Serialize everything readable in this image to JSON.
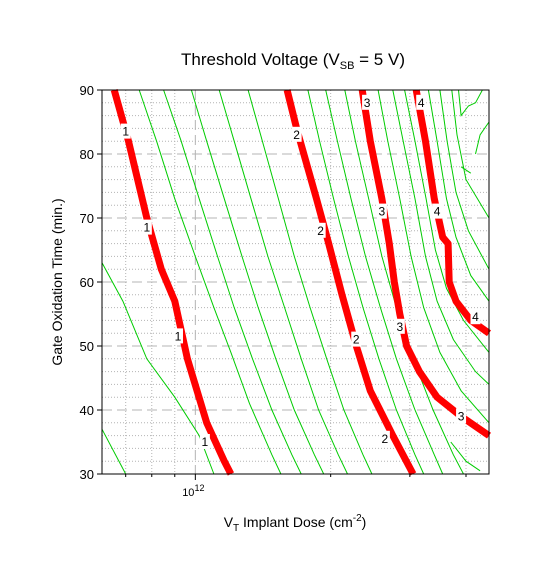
{
  "chart_data": {
    "type": "contour",
    "title": {
      "main": "Threshold Voltage (V",
      "sub": "SB",
      "rest": " = 5 V)"
    },
    "xlabel": {
      "main": "V",
      "sub": "T",
      "rest": " Implant Dose (cm",
      "sup": "-2",
      "end": ")"
    },
    "ylabel": "Gate Oxidation Time (min.)",
    "x_scale": "log",
    "xlim": [
      620000000000.0,
      4500000000000.0
    ],
    "ylim": [
      30,
      90
    ],
    "x_tick_labels": [
      {
        "value": 1000000000000.0,
        "base": "10",
        "exp": "12"
      }
    ],
    "x_minor_ticks": [
      700000000000.0,
      800000000000.0,
      900000000000.0,
      2000000000000.0,
      3000000000000.0,
      4000000000000.0
    ],
    "y_ticks": [
      30,
      40,
      50,
      60,
      70,
      80,
      90
    ],
    "y_tick_labels": [
      "30",
      "40",
      "50",
      "60",
      "70",
      "80",
      "90"
    ],
    "grid": true,
    "colors": {
      "labeled_contour": "#ff0000",
      "minor_contour": "#00cc00",
      "grid": "#b4b4b4",
      "frame": "#000000"
    },
    "labeled_contours": [
      {
        "level": "1",
        "points": [
          [
            660000000000.0,
            90
          ],
          [
            710000000000.0,
            82
          ],
          [
            780000000000.0,
            70
          ],
          [
            840000000000.0,
            62
          ],
          [
            900000000000.0,
            57
          ],
          [
            960000000000.0,
            48
          ],
          [
            1060000000000.0,
            38
          ],
          [
            1160000000000.0,
            32
          ],
          [
            1200000000000.0,
            30
          ]
        ],
        "label_positions": [
          [
            700000000000.0,
            83.5
          ],
          [
            780000000000.0,
            68.5
          ],
          [
            915000000000.0,
            51.5
          ],
          [
            1050000000000.0,
            35
          ]
        ]
      },
      {
        "level": "2",
        "points": [
          [
            1600000000000.0,
            90
          ],
          [
            1680000000000.0,
            84
          ],
          [
            1860000000000.0,
            73
          ],
          [
            1980000000000.0,
            66
          ],
          [
            2120000000000.0,
            58
          ],
          [
            2280000000000.0,
            50
          ],
          [
            2450000000000.0,
            43
          ],
          [
            2750000000000.0,
            36
          ],
          [
            3050000000000.0,
            30
          ]
        ],
        "label_positions": [
          [
            1680000000000.0,
            83
          ],
          [
            1900000000000.0,
            68
          ],
          [
            2280000000000.0,
            51
          ],
          [
            2640000000000.0,
            35.5
          ]
        ]
      },
      {
        "level": "3",
        "points": [
          [
            2350000000000.0,
            90
          ],
          [
            2450000000000.0,
            82
          ],
          [
            2600000000000.0,
            73
          ],
          [
            2700000000000.0,
            66
          ],
          [
            2770000000000.0,
            60
          ],
          [
            2850000000000.0,
            55
          ],
          [
            2950000000000.0,
            50
          ],
          [
            3150000000000.0,
            46
          ],
          [
            3450000000000.0,
            42
          ],
          [
            3900000000000.0,
            39
          ],
          [
            4500000000000.0,
            36
          ]
        ],
        "label_positions": [
          [
            2410000000000.0,
            88
          ],
          [
            2600000000000.0,
            71
          ],
          [
            2850000000000.0,
            53
          ],
          [
            3900000000000.0,
            39
          ]
        ]
      },
      {
        "level": "4",
        "points": [
          [
            3100000000000.0,
            90
          ],
          [
            3250000000000.0,
            82
          ],
          [
            3400000000000.0,
            73
          ],
          [
            3550000000000.0,
            67
          ],
          [
            3650000000000.0,
            66
          ],
          [
            3670000000000.0,
            60
          ],
          [
            3800000000000.0,
            57
          ],
          [
            4100000000000.0,
            54
          ],
          [
            4500000000000.0,
            52
          ]
        ],
        "label_positions": [
          [
            3180000000000.0,
            88
          ],
          [
            3450000000000.0,
            71
          ],
          [
            4200000000000.0,
            54.5
          ]
        ]
      }
    ],
    "minor_contours": [
      [
        [
          620000000000.0,
          63
        ],
        [
          690000000000.0,
          57
        ],
        [
          780000000000.0,
          48
        ],
        [
          900000000000.0,
          42
        ],
        [
          1020000000000.0,
          36
        ],
        [
          1100000000000.0,
          30
        ]
      ],
      [
        [
          620000000000.0,
          37
        ],
        [
          700000000000.0,
          30
        ]
      ],
      [
        [
          750000000000.0,
          90
        ],
        [
          820000000000.0,
          82
        ],
        [
          900000000000.0,
          73
        ],
        [
          1000000000000.0,
          64
        ],
        [
          1100000000000.0,
          56
        ],
        [
          1200000000000.0,
          49
        ],
        [
          1320000000000.0,
          41
        ],
        [
          1480000000000.0,
          33
        ],
        [
          1550000000000.0,
          30
        ]
      ],
      [
        [
          850000000000.0,
          90
        ],
        [
          930000000000.0,
          82
        ],
        [
          1020000000000.0,
          73
        ],
        [
          1120000000000.0,
          64
        ],
        [
          1220000000000.0,
          56
        ],
        [
          1340000000000.0,
          48
        ],
        [
          1480000000000.0,
          40
        ],
        [
          1640000000000.0,
          33
        ],
        [
          1720000000000.0,
          30
        ]
      ],
      [
        [
          980000000000.0,
          90
        ],
        [
          1060000000000.0,
          82
        ],
        [
          1160000000000.0,
          73
        ],
        [
          1270000000000.0,
          64
        ],
        [
          1380000000000.0,
          56
        ],
        [
          1510000000000.0,
          48
        ],
        [
          1660000000000.0,
          40
        ],
        [
          1840000000000.0,
          33
        ],
        [
          1930000000000.0,
          30
        ]
      ],
      [
        [
          1130000000000.0,
          90
        ],
        [
          1220000000000.0,
          82
        ],
        [
          1330000000000.0,
          73
        ],
        [
          1450000000000.0,
          64
        ],
        [
          1580000000000.0,
          56
        ],
        [
          1720000000000.0,
          48
        ],
        [
          1880000000000.0,
          40
        ],
        [
          2080000000000.0,
          33
        ],
        [
          2180000000000.0,
          30
        ]
      ],
      [
        [
          1310000000000.0,
          90
        ],
        [
          1410000000000.0,
          82
        ],
        [
          1530000000000.0,
          73
        ],
        [
          1660000000000.0,
          64
        ],
        [
          1800000000000.0,
          56
        ],
        [
          1960000000000.0,
          48
        ],
        [
          2140000000000.0,
          40
        ],
        [
          2360000000000.0,
          33
        ],
        [
          2470000000000.0,
          30
        ]
      ],
      [
        [
          1780000000000.0,
          90
        ],
        [
          1890000000000.0,
          82
        ],
        [
          2030000000000.0,
          73
        ],
        [
          2190000000000.0,
          64
        ],
        [
          2360000000000.0,
          56
        ],
        [
          2560000000000.0,
          48
        ],
        [
          2800000000000.0,
          40
        ],
        [
          3080000000000.0,
          33
        ],
        [
          3220000000000.0,
          30
        ]
      ],
      [
        [
          1950000000000.0,
          90
        ],
        [
          2070000000000.0,
          82
        ],
        [
          2220000000000.0,
          73
        ],
        [
          2390000000000.0,
          64
        ],
        [
          2580000000000.0,
          56
        ],
        [
          2800000000000.0,
          48
        ],
        [
          3080000000000.0,
          40
        ],
        [
          3400000000000.0,
          33
        ],
        [
          3550000000000.0,
          30
        ]
      ],
      [
        [
          2150000000000.0,
          90
        ],
        [
          2270000000000.0,
          82
        ],
        [
          2430000000000.0,
          73
        ],
        [
          2600000000000.0,
          64
        ],
        [
          2800000000000.0,
          56
        ],
        [
          3050000000000.0,
          48
        ],
        [
          3380000000000.0,
          40
        ],
        [
          3750000000000.0,
          33
        ],
        [
          3950000000000.0,
          30
        ]
      ],
      [
        [
          2550000000000.0,
          90
        ],
        [
          2680000000000.0,
          82
        ],
        [
          2850000000000.0,
          73
        ],
        [
          3020000000000.0,
          64
        ],
        [
          3220000000000.0,
          56
        ],
        [
          3500000000000.0,
          49
        ],
        [
          3900000000000.0,
          43
        ],
        [
          4500000000000.0,
          38
        ]
      ],
      [
        [
          2750000000000.0,
          90
        ],
        [
          2900000000000.0,
          82
        ],
        [
          3080000000000.0,
          73
        ],
        [
          3250000000000.0,
          64
        ],
        [
          3450000000000.0,
          57
        ],
        [
          3750000000000.0,
          51
        ],
        [
          4200000000000.0,
          46
        ],
        [
          4500000000000.0,
          44
        ]
      ],
      [
        [
          2920000000000.0,
          90
        ],
        [
          3080000000000.0,
          82
        ],
        [
          3260000000000.0,
          73
        ],
        [
          3420000000000.0,
          65
        ],
        [
          3620000000000.0,
          59
        ],
        [
          3950000000000.0,
          54
        ],
        [
          4500000000000.0,
          49
        ]
      ],
      [
        [
          3300000000000.0,
          90
        ],
        [
          3450000000000.0,
          82
        ],
        [
          3620000000000.0,
          73
        ],
        [
          3800000000000.0,
          67
        ],
        [
          4100000000000.0,
          61
        ],
        [
          4500000000000.0,
          57
        ]
      ],
      [
        [
          3500000000000.0,
          90
        ],
        [
          3630000000000.0,
          82
        ],
        [
          3800000000000.0,
          74
        ],
        [
          4050000000000.0,
          68
        ],
        [
          4500000000000.0,
          62
        ]
      ],
      [
        [
          3720000000000.0,
          90
        ],
        [
          3820000000000.0,
          83
        ],
        [
          4000000000000.0,
          76
        ],
        [
          4500000000000.0,
          70
        ]
      ],
      [
        [
          3850000000000.0,
          90
        ],
        [
          3900000000000.0,
          86
        ],
        [
          4050000000000.0,
          87.5
        ],
        [
          4200000000000.0,
          88
        ],
        [
          4350000000000.0,
          90
        ]
      ],
      [
        [
          4200000000000.0,
          80
        ],
        [
          4300000000000.0,
          83
        ],
        [
          4500000000000.0,
          85
        ]
      ],
      [
        [
          3900000000000.0,
          78
        ],
        [
          4100000000000.0,
          77
        ]
      ],
      [
        [
          3700000000000.0,
          35
        ],
        [
          4000000000000.0,
          32
        ],
        [
          4300000000000.0,
          30.5
        ]
      ]
    ]
  }
}
